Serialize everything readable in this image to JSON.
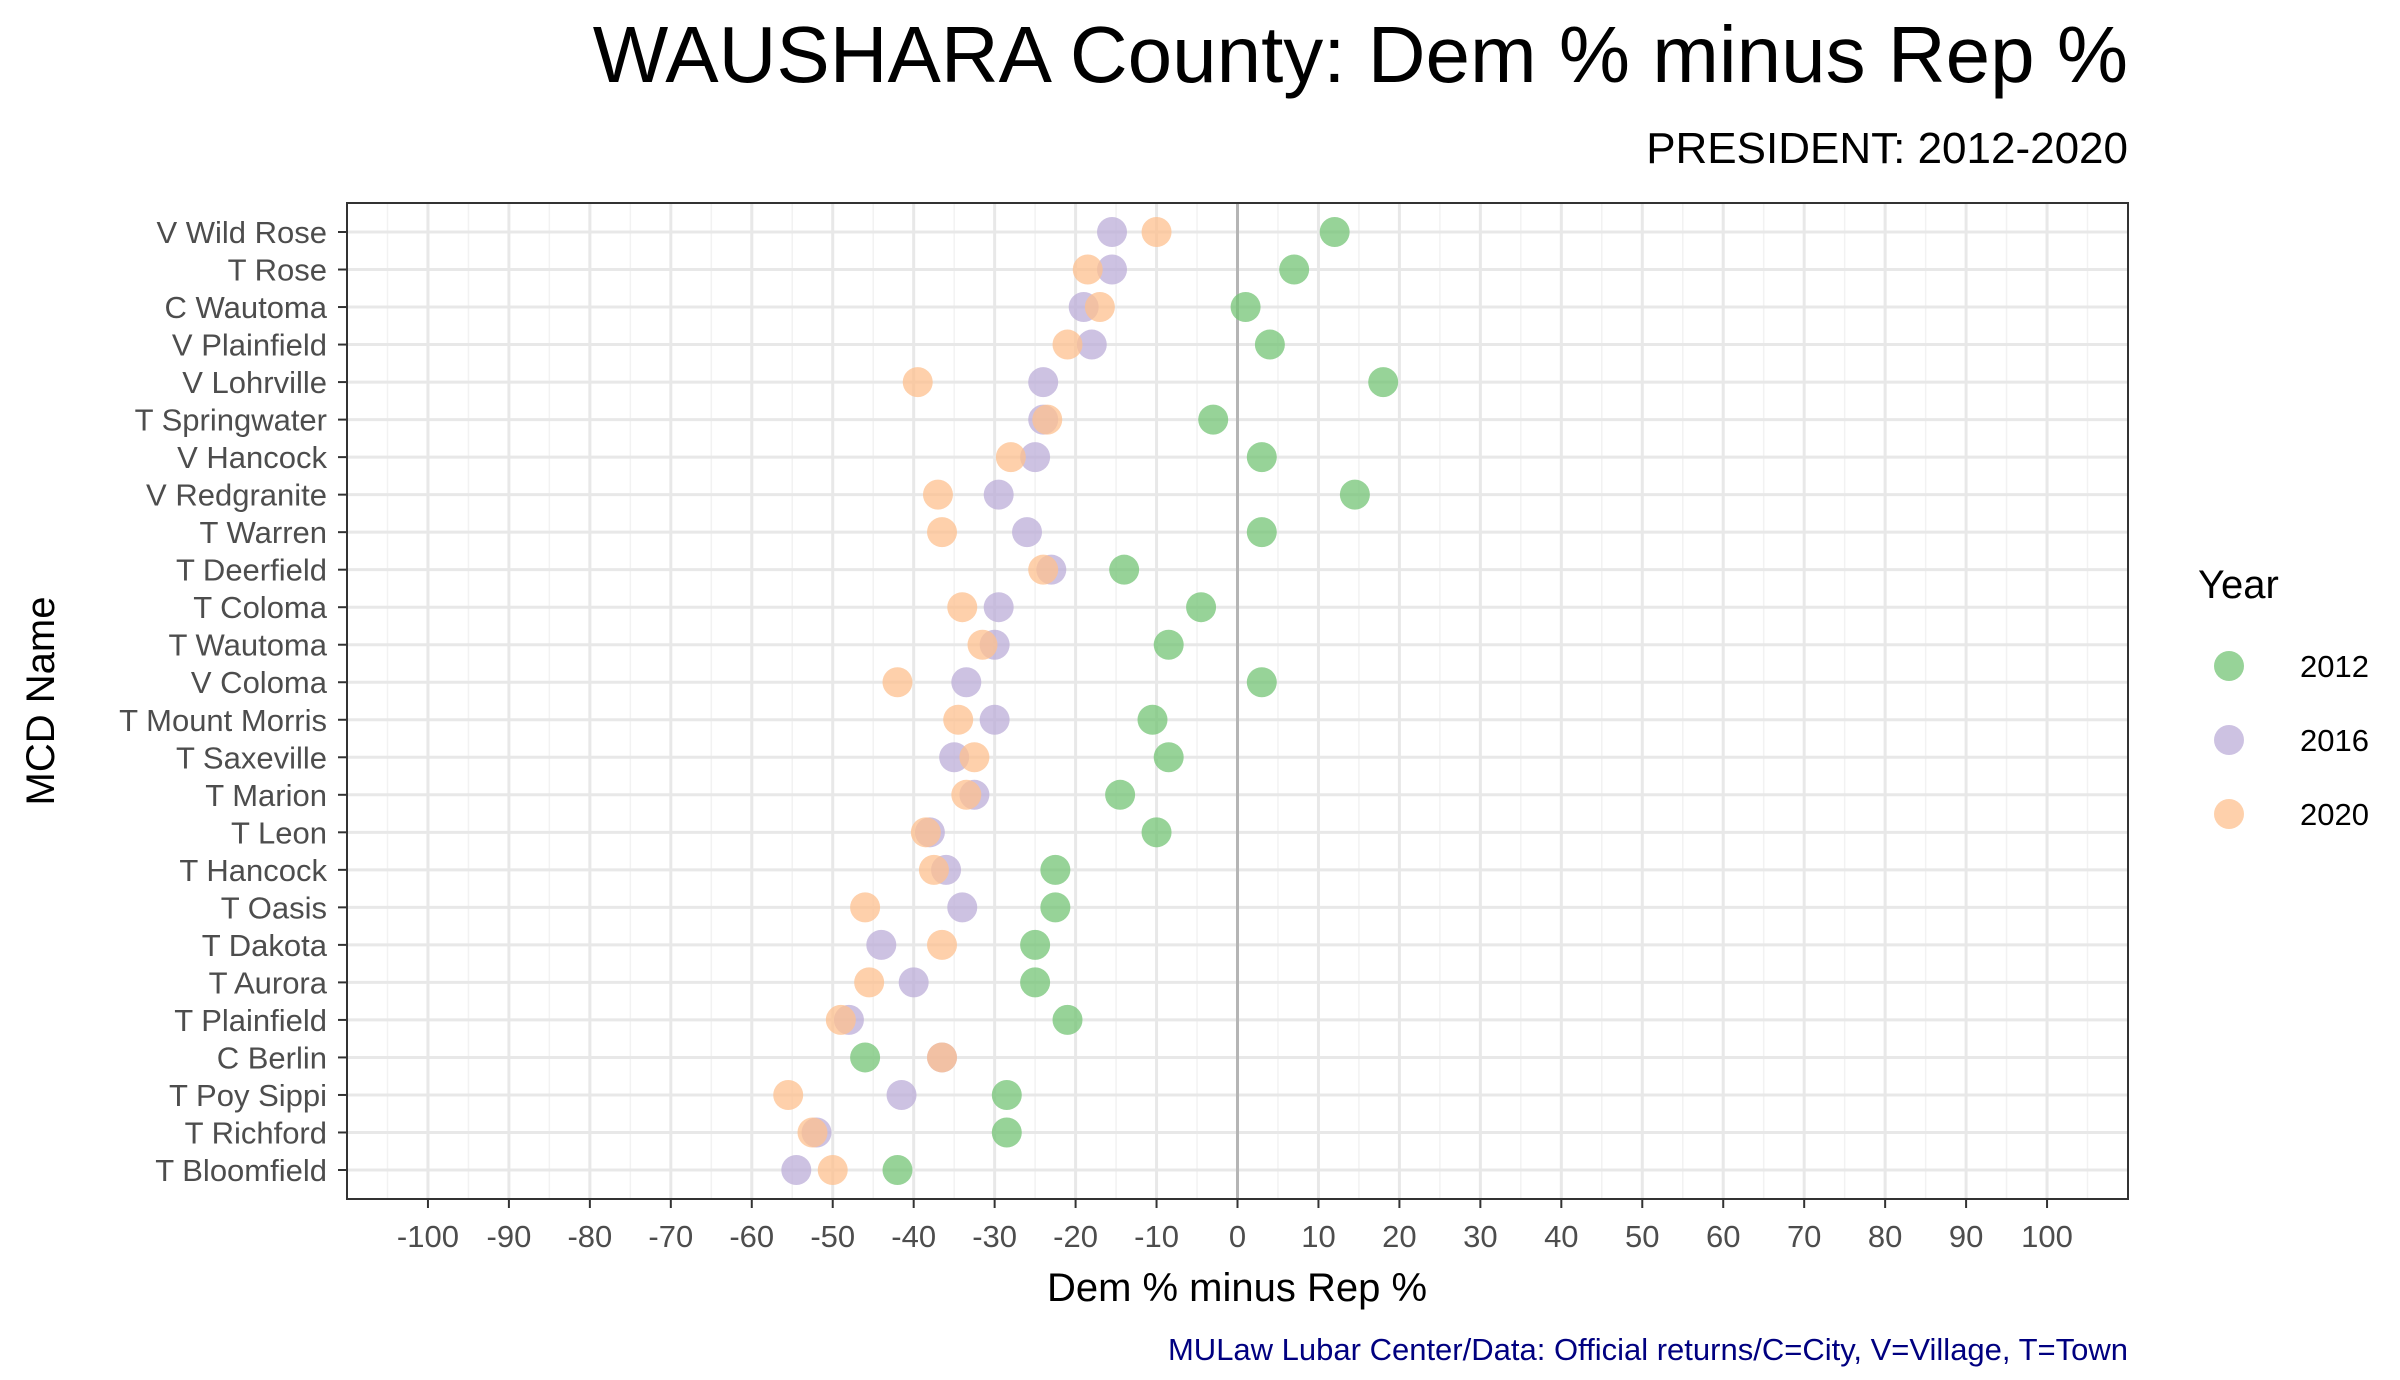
{
  "chart_data": {
    "type": "scatter",
    "title": "WAUSHARA County: Dem % minus Rep %",
    "subtitle": "PRESIDENT: 2012-2020",
    "xlabel": "Dem % minus Rep %",
    "ylabel": "MCD Name",
    "caption": "MULaw Lubar Center/Data: Official returns/C=City, V=Village, T=Town",
    "xlim": [
      -110,
      110
    ],
    "x_ticks": [
      -100,
      -90,
      -80,
      -70,
      -60,
      -50,
      -40,
      -30,
      -20,
      -10,
      0,
      10,
      20,
      30,
      40,
      50,
      60,
      70,
      80,
      90,
      100
    ],
    "reference_line_x": 0,
    "grid": true,
    "legend": {
      "title": "Year",
      "placement": "right"
    },
    "categories": [
      "V Wild Rose",
      "T Rose",
      "C Wautoma",
      "V Plainfield",
      "V Lohrville",
      "T Springwater",
      "V Hancock",
      "V Redgranite",
      "T Warren",
      "T Deerfield",
      "T Coloma",
      "T Wautoma",
      "V Coloma",
      "T Mount Morris",
      "T Saxeville",
      "T Marion",
      "T Leon",
      "T Hancock",
      "T Oasis",
      "T Dakota",
      "T Aurora",
      "T Plainfield",
      "C Berlin",
      "T Poy Sippi",
      "T Richford",
      "T Bloomfield"
    ],
    "series": [
      {
        "name": "2012",
        "color": "#74c476",
        "values": [
          12,
          7,
          1,
          4,
          18,
          -3,
          3,
          14.5,
          3,
          -14,
          -4.5,
          -8.5,
          3,
          -10.5,
          -8.5,
          -14.5,
          -10,
          -22.5,
          -22.5,
          -25,
          -25,
          -21,
          -46,
          -28.5,
          -28.5,
          -42
        ]
      },
      {
        "name": "2016",
        "color": "#bcaed8",
        "values": [
          -15.5,
          -15.5,
          -19,
          -18,
          -24,
          -24,
          -25,
          -29.5,
          -26,
          -23,
          -29.5,
          -30,
          -33.5,
          -30,
          -35,
          -32.5,
          -38,
          -36,
          -34,
          -44,
          -40,
          -48,
          -36.5,
          -41.5,
          -52,
          -54.5
        ]
      },
      {
        "name": "2020",
        "color": "#fdc08f",
        "values": [
          -10,
          -18.5,
          -17,
          -21,
          -39.5,
          -23.5,
          -28,
          -37,
          -36.5,
          -24,
          -34,
          -31.5,
          -42,
          -34.5,
          -32.5,
          -33.5,
          -38.5,
          -37.5,
          -46,
          -36.5,
          -45.5,
          -49,
          -36.5,
          -55.5,
          -52.5,
          -50
        ]
      }
    ]
  }
}
